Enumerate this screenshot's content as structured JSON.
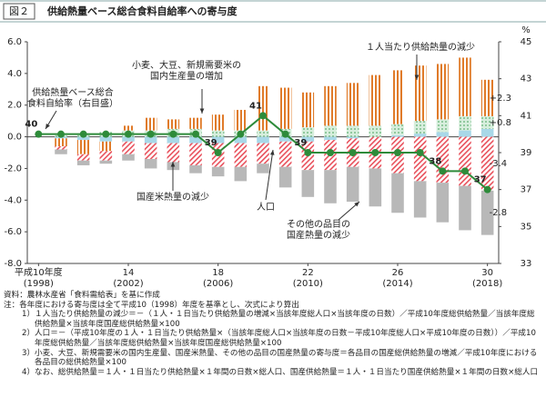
{
  "figure_label": "図２",
  "chart_data": {
    "type": "bar",
    "title": "供給熱量ベース総合食料自給率への寄与度",
    "categories": [
      "平成10年度",
      null,
      null,
      null,
      "14",
      null,
      null,
      null,
      "18",
      null,
      null,
      null,
      "22",
      null,
      null,
      null,
      "26",
      null,
      null,
      null,
      "30"
    ],
    "category_years": [
      "(1998)",
      null,
      null,
      null,
      "(2002)",
      null,
      null,
      null,
      "(2006)",
      null,
      null,
      null,
      "(2010)",
      null,
      null,
      null,
      "(2014)",
      null,
      null,
      null,
      "(2018)"
    ],
    "ylim": [
      -8,
      6
    ],
    "yticks": [
      {
        "value": -8,
        "label": "-8.0"
      },
      {
        "value": -6,
        "label": "-6.0"
      },
      {
        "value": -4,
        "label": "-4.0"
      },
      {
        "value": -2,
        "label": "-2.0"
      },
      {
        "value": 0,
        "label": "0.0"
      },
      {
        "value": 2,
        "label": "2.0"
      },
      {
        "value": 4,
        "label": "4.0"
      },
      {
        "value": 6,
        "label": "6.0"
      }
    ],
    "y2lim": [
      33,
      45
    ],
    "y2ticks": [
      33,
      35,
      37,
      39,
      41,
      43,
      45
    ],
    "y2label": "%",
    "series": [
      {
        "name": "人口",
        "color": "#a8d8e8",
        "pattern": "solid",
        "values": [
          0,
          -0.1,
          -0.2,
          -0.3,
          -0.3,
          -0.4,
          -0.4,
          -0.4,
          -0.4,
          -0.4,
          -0.4,
          -0.3,
          -0.3,
          -0.2,
          -0.1,
          0,
          0.1,
          0.2,
          0.3,
          0.4,
          0.5
        ]
      },
      {
        "name": "小麦、大豆、新規需要米の\n国内生産量の増加",
        "color": "#8cc79a",
        "pattern": "dots",
        "values": [
          0,
          0.1,
          0.2,
          0.3,
          0.4,
          0.4,
          0.5,
          0.5,
          0.4,
          0.4,
          0.4,
          0.5,
          0.6,
          0.7,
          0.7,
          0.7,
          0.7,
          0.8,
          0.8,
          0.9,
          0.8
        ],
        "value_labels": [
          null,
          null,
          null,
          null,
          null,
          null,
          null,
          null,
          null,
          null,
          null,
          null,
          null,
          null,
          null,
          null,
          null,
          null,
          null,
          null,
          "+0.8"
        ]
      },
      {
        "name": "１人当たり供給熱量の減少",
        "color": "#e07b2a",
        "pattern": "stripes",
        "values": [
          0,
          -0.5,
          -0.9,
          -0.6,
          0.3,
          0.8,
          0.6,
          0.7,
          1.0,
          1.3,
          2.8,
          2.6,
          2.2,
          2.5,
          2.7,
          3.2,
          3.4,
          3.5,
          3.5,
          3.7,
          2.3
        ],
        "value_labels": [
          null,
          null,
          null,
          null,
          null,
          null,
          null,
          null,
          null,
          null,
          null,
          null,
          null,
          null,
          null,
          null,
          null,
          null,
          null,
          null,
          "+2.3"
        ]
      },
      {
        "name": "国産米熱量の減少",
        "color": "#e8505b",
        "pattern": "hatch",
        "values": [
          0,
          -0.2,
          -0.4,
          -0.6,
          -0.8,
          -1.0,
          -1.2,
          -1.4,
          -1.5,
          -1.5,
          -1.3,
          -1.6,
          -1.8,
          -1.9,
          -1.8,
          -2.0,
          -2.3,
          -2.8,
          -2.9,
          -3.1,
          -3.4
        ],
        "value_labels": [
          null,
          null,
          null,
          null,
          null,
          null,
          null,
          null,
          null,
          null,
          null,
          null,
          null,
          null,
          null,
          null,
          null,
          null,
          null,
          null,
          "-3.4"
        ]
      },
      {
        "name": "その他の品目の\n国産熱量の減少",
        "color": "#b8b8b8",
        "pattern": "solid",
        "values": [
          0,
          -0.3,
          -0.3,
          -0.2,
          -0.4,
          -0.6,
          -0.5,
          -0.5,
          -0.6,
          -0.9,
          -0.6,
          -1.3,
          -1.7,
          -2.1,
          -2.2,
          -2.4,
          -2.5,
          -2.3,
          -2.5,
          -2.8,
          -2.8
        ],
        "value_labels": [
          null,
          null,
          null,
          null,
          null,
          null,
          null,
          null,
          null,
          null,
          null,
          null,
          null,
          null,
          null,
          null,
          null,
          null,
          null,
          null,
          "-2.8"
        ]
      },
      {
        "name": "供給熱量ベース総合\n食料自給率（右目盛）",
        "type": "line",
        "axis": "y2",
        "color": "#2e8b3a",
        "values": [
          40,
          40,
          40,
          40,
          40,
          40,
          40,
          40,
          39,
          40,
          41,
          40,
          39,
          39,
          39,
          39,
          39,
          39,
          38,
          38,
          37
        ],
        "value_labels": [
          "40",
          null,
          null,
          null,
          null,
          null,
          null,
          null,
          "39",
          null,
          "41",
          null,
          "39",
          null,
          null,
          null,
          null,
          null,
          "38",
          null,
          "37"
        ]
      }
    ]
  },
  "notes": [
    "資料：農林水産省「食料需給表」を基に作成",
    "注：各年度における寄与度は全て平成10（1998）年度を基準とし、次式により算出",
    "1）１人当たり供給熱量の減少＝－（１人・１日当たり供給熱量の増減×当該年度総人口×当該年度の日数）／平成10年度総供給熱量／当該年度総供給熱量×当該年度国産総供給熱量×100",
    "2）人口＝－（平成10年度の１人・１日当たり供給熱量×（当該年度総人口×当該年度の日数－平成10年度総人口×平成10年度の日数））／平成10年度総供給熱量／当該年度総供給熱量×当該年度国産総供給熱量×100",
    "3）小麦、大豆、新規需要米の国内生産量、国産米熱量、その他の品目の国産熱量の寄与度＝各品目の国産総供給熱量の増減／平成10年度における各品目の総供給熱量×100",
    "4）なお、総供給熱量＝１人・１日当たり供給熱量×１年間の日数×総人口、国産供給熱量＝１人・１日当たり国産供給熱量×１年間の日数×総人口"
  ]
}
